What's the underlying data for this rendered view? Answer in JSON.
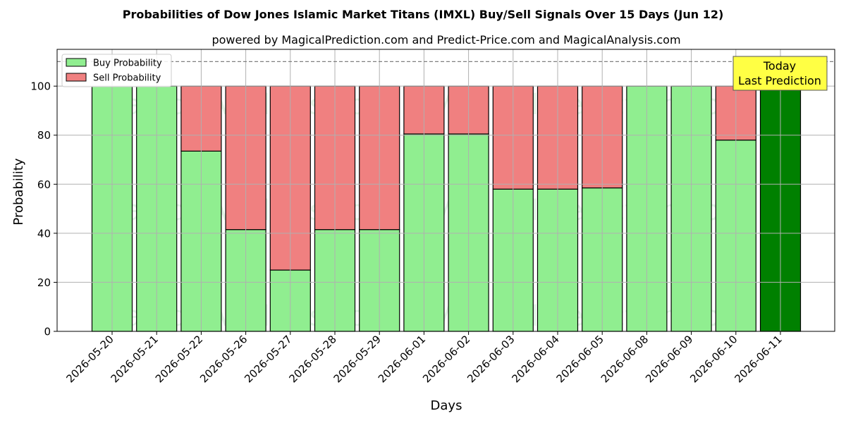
{
  "chart_data": {
    "type": "bar",
    "stacked": true,
    "title": "Probabilities of Dow Jones Islamic Market Titans (IMXL) Buy/Sell Signals Over 15 Days (Jun 12)",
    "subtitle": "powered by MagicalPrediction.com and Predict-Price.com and MagicalAnalysis.com",
    "xlabel": "Days",
    "ylabel": "Probability",
    "ylim": [
      0,
      115
    ],
    "yticks": [
      0,
      20,
      40,
      60,
      80,
      100
    ],
    "grid": true,
    "legend_position": "top-left",
    "reference_line": 110,
    "categories": [
      "2026-05-20",
      "2026-05-21",
      "2026-05-22",
      "2026-05-26",
      "2026-05-27",
      "2026-05-28",
      "2026-05-29",
      "2026-06-01",
      "2026-06-02",
      "2026-06-03",
      "2026-06-04",
      "2026-06-05",
      "2026-06-08",
      "2026-06-09",
      "2026-06-10",
      "2026-06-11"
    ],
    "series": [
      {
        "name": "Buy Probability",
        "color": "#90ee90",
        "values": [
          100,
          100,
          73.5,
          41.5,
          25,
          41.5,
          41.5,
          80.5,
          80.5,
          58,
          58,
          58.5,
          100,
          100,
          78,
          100
        ]
      },
      {
        "name": "Sell Probability",
        "color": "#f08080",
        "values": [
          0,
          0,
          26.5,
          58.5,
          75,
          58.5,
          58.5,
          19.5,
          19.5,
          42,
          42,
          41.5,
          0,
          0,
          22,
          0
        ]
      }
    ],
    "highlight": {
      "index": 15,
      "color": "#008000"
    },
    "annotation": {
      "line1": "Today",
      "line2": "Last Prediction",
      "color": "#ffff44"
    },
    "watermarks": [
      "MagicalAnalysis.com",
      "MagicalPrediction.com"
    ]
  }
}
